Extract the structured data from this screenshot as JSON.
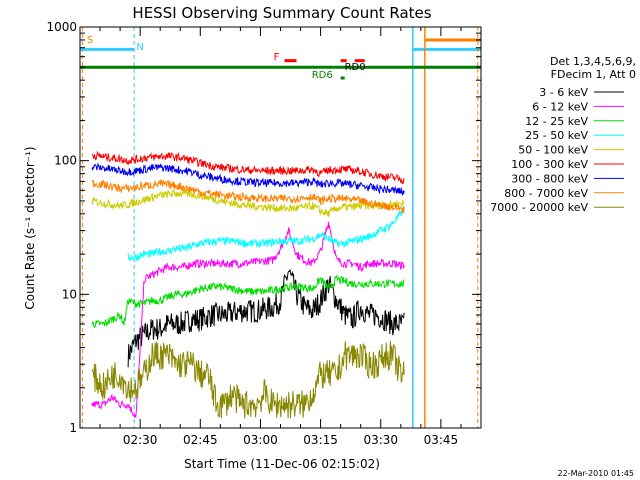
{
  "chart_data": {
    "type": "line",
    "title": "HESSI Observing Summary Count Rates",
    "xlabel": "Start Time (11-Dec-06 02:15:02)",
    "ylabel": "Count Rate (s⁻¹ detector⁻¹)",
    "yscale": "log",
    "ylim": [
      1,
      1000
    ],
    "xlim_minutes": [
      0,
      100
    ],
    "x_ticks": [
      {
        "t": 15,
        "label": "02:30"
      },
      {
        "t": 30,
        "label": "02:45"
      },
      {
        "t": 45,
        "label": "03:00"
      },
      {
        "t": 60,
        "label": "03:15"
      },
      {
        "t": 75,
        "label": "03:30"
      },
      {
        "t": 90,
        "label": "03:45"
      }
    ],
    "y_ticks": [
      {
        "v": 1,
        "label": "1"
      },
      {
        "v": 10,
        "label": "10"
      },
      {
        "v": 100,
        "label": "100"
      },
      {
        "v": 1000,
        "label": "1000"
      }
    ],
    "legend_header": [
      "Det 1,3,4,5,6,9,",
      "FDecim 1, Att 0"
    ],
    "series": [
      {
        "name": "3 - 6 keV",
        "color": "#000000",
        "x": [
          12,
          14,
          16,
          18,
          20,
          22,
          25,
          28,
          30,
          33,
          36,
          40,
          44,
          48,
          50,
          52,
          54,
          56,
          58,
          60,
          62,
          64,
          66,
          68,
          70,
          72,
          74,
          76,
          78,
          80,
          81
        ],
        "y": [
          3.5,
          4.5,
          5,
          5.5,
          5.5,
          6,
          6,
          6.5,
          6.5,
          7,
          7,
          7.5,
          7.5,
          8,
          9,
          15,
          10,
          8,
          7.5,
          9,
          12,
          9,
          7,
          6.5,
          8,
          7,
          7,
          6.5,
          6,
          6,
          6
        ]
      },
      {
        "name": "6 - 12 keV",
        "color": "#ff00ff",
        "x": [
          3,
          6,
          8,
          10,
          12,
          14,
          16,
          18,
          20,
          22,
          24,
          26,
          28,
          30,
          35,
          40,
          44,
          48,
          50,
          52,
          54,
          56,
          58,
          60,
          62,
          64,
          66,
          68,
          70,
          72,
          74,
          76,
          78,
          80,
          81
        ],
        "y": [
          1.5,
          1.5,
          1.7,
          1.5,
          1.5,
          1.2,
          13,
          14,
          15,
          16,
          16,
          16,
          17,
          17,
          17,
          17,
          17.5,
          18,
          22,
          30,
          20,
          18,
          17,
          21,
          35,
          18,
          17,
          17,
          16,
          17,
          17,
          17,
          17,
          16.5,
          16.5
        ]
      },
      {
        "name": "12 - 25 keV",
        "color": "#00dd00",
        "x": [
          3,
          6,
          8,
          10,
          11,
          12,
          14,
          16,
          18,
          20,
          22,
          24,
          26,
          28,
          30,
          34,
          38,
          42,
          46,
          50,
          54,
          58,
          60,
          62,
          64,
          66,
          68,
          70,
          72,
          74,
          76,
          78,
          80,
          81
        ],
        "y": [
          6,
          6,
          6.5,
          7,
          6,
          9,
          8.5,
          8.5,
          9,
          9,
          9.5,
          10,
          10,
          10.5,
          11,
          11.5,
          11,
          10.5,
          10.5,
          11,
          11.5,
          11,
          13,
          11,
          13,
          12.5,
          12,
          12,
          12,
          12,
          12,
          12,
          12,
          12
        ]
      },
      {
        "name": "25 - 50 keV",
        "color": "#00ffff",
        "x": [
          12,
          14,
          16,
          18,
          20,
          22,
          24,
          26,
          28,
          30,
          34,
          38,
          42,
          46,
          50,
          54,
          58,
          60,
          62,
          64,
          66,
          68,
          70,
          72,
          74,
          76,
          78,
          80,
          81
        ],
        "y": [
          19,
          19,
          20,
          20,
          21,
          21,
          22,
          22,
          23,
          24,
          25,
          25,
          24,
          24,
          25,
          25,
          26,
          28,
          26,
          24,
          24,
          25,
          26,
          27,
          29,
          31,
          34,
          40,
          45
        ]
      },
      {
        "name": "50 - 100 keV",
        "color": "#cccc00",
        "x": [
          3,
          6,
          8,
          10,
          12,
          14,
          16,
          18,
          20,
          22,
          24,
          26,
          28,
          30,
          34,
          38,
          42,
          46,
          50,
          54,
          58,
          60,
          62,
          64,
          66,
          68,
          70,
          72,
          74,
          76,
          78,
          80,
          81
        ],
        "y": [
          50,
          48,
          47,
          46,
          47,
          49,
          51,
          53,
          55,
          56,
          57,
          57,
          56,
          55,
          51,
          48,
          46,
          45,
          44,
          44,
          46,
          42,
          40,
          44,
          45,
          45,
          46,
          46,
          46,
          47,
          47,
          48,
          48
        ]
      },
      {
        "name": "100 - 300 keV",
        "color": "#ff0000",
        "x": [
          3,
          6,
          8,
          10,
          12,
          14,
          16,
          18,
          20,
          22,
          24,
          26,
          28,
          30,
          34,
          38,
          42,
          46,
          50,
          54,
          58,
          60,
          62,
          64,
          66,
          68,
          70,
          72,
          74,
          76,
          78,
          80,
          81
        ],
        "y": [
          110,
          107,
          105,
          103,
          100,
          102,
          105,
          106,
          108,
          108,
          106,
          104,
          100,
          96,
          90,
          87,
          85,
          84,
          84,
          84,
          86,
          80,
          85,
          86,
          86,
          85,
          83,
          80,
          78,
          76,
          75,
          73,
          70
        ]
      },
      {
        "name": "300 - 800 keV",
        "color": "#0000ee",
        "x": [
          3,
          6,
          8,
          10,
          12,
          14,
          16,
          18,
          20,
          22,
          24,
          26,
          28,
          30,
          34,
          38,
          42,
          46,
          50,
          54,
          58,
          60,
          62,
          64,
          66,
          68,
          70,
          72,
          74,
          76,
          78,
          80,
          81
        ],
        "y": [
          90,
          88,
          86,
          84,
          83,
          84,
          86,
          88,
          89,
          88,
          86,
          84,
          82,
          78,
          74,
          71,
          69,
          68,
          68,
          68,
          70,
          66,
          68,
          68,
          67,
          66,
          65,
          63,
          62,
          61,
          60,
          59,
          58
        ]
      },
      {
        "name": "800 - 7000 keV",
        "color": "#ff8000",
        "x": [
          3,
          6,
          8,
          10,
          12,
          14,
          16,
          18,
          20,
          22,
          24,
          26,
          28,
          30,
          34,
          38,
          42,
          46,
          50,
          54,
          58,
          60,
          62,
          64,
          66,
          68,
          70,
          72,
          74,
          76,
          78,
          80,
          81
        ],
        "y": [
          68,
          66,
          64,
          62,
          62,
          63,
          65,
          66,
          67,
          66,
          65,
          63,
          61,
          58,
          56,
          54,
          53,
          52,
          52,
          52,
          54,
          50,
          52,
          52,
          52,
          51,
          50,
          48,
          47,
          46,
          45,
          44,
          43
        ]
      },
      {
        "name": "7000 - 20000 keV",
        "color": "#888800",
        "x": [
          3,
          6,
          8,
          10,
          12,
          14,
          16,
          18,
          20,
          22,
          24,
          26,
          28,
          30,
          32,
          34,
          36,
          38,
          40,
          42,
          44,
          46,
          48,
          50,
          52,
          54,
          56,
          58,
          60,
          62,
          64,
          66,
          68,
          70,
          72,
          74,
          76,
          78,
          80,
          81
        ],
        "y": [
          2.5,
          2,
          2.5,
          2.5,
          2,
          2,
          2.5,
          3.5,
          3.5,
          3.5,
          3,
          3,
          3,
          2.5,
          2.5,
          1.5,
          1.5,
          1.8,
          1.5,
          1.5,
          1.5,
          1.8,
          1.5,
          1.5,
          1.5,
          1.5,
          1.5,
          1.8,
          2.5,
          2.5,
          2.5,
          3.5,
          3.5,
          3.5,
          3,
          3,
          3.5,
          3.5,
          2.5,
          2.5
        ]
      }
    ],
    "flag_lines": [
      {
        "label": "S",
        "color": "#ff8000",
        "t": 0.6,
        "v": 900
      },
      {
        "label": "N",
        "color": "#33ccff",
        "t": 13.5,
        "v": 680
      }
    ],
    "flag_marks": [
      {
        "label": "F",
        "color": "#ff0000"
      },
      {
        "label": "RD0",
        "color": "#000000"
      },
      {
        "label": "RD6",
        "color": "#008000"
      }
    ],
    "timestamp": "22-Mar-2010 01:45"
  }
}
